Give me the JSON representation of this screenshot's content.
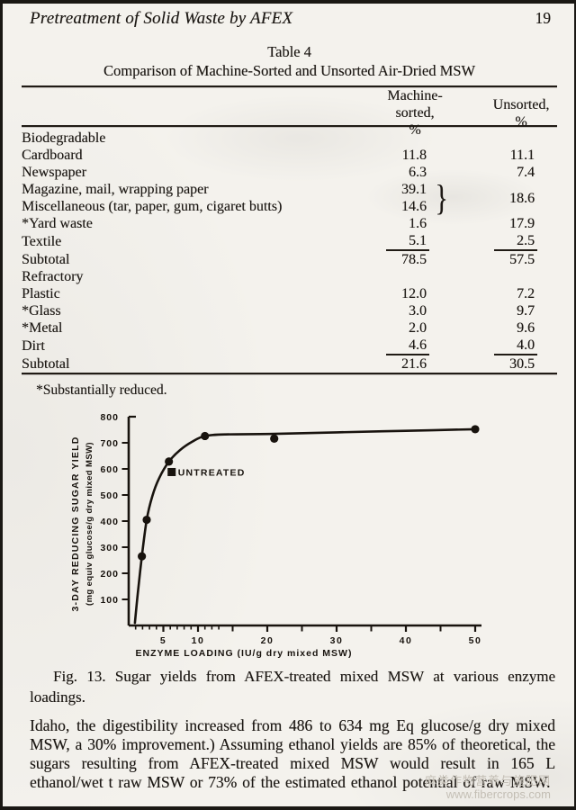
{
  "page": {
    "header_title": "Pretreatment of Solid Waste by AFEX",
    "page_number": "19"
  },
  "table": {
    "title_line1": "Table 4",
    "title_line2": "Comparison of Machine-Sorted and Unsorted Air-Dried MSW",
    "col1_header": "Machine-sorted,",
    "col1_unit": "%",
    "col2_header": "Unsorted,",
    "col2_unit": "%",
    "group_brace": "}",
    "sections": [
      {
        "name": "Biodegradable",
        "rows": [
          {
            "label": "Cardboard",
            "machine": "11.8",
            "unsorted": "11.1"
          },
          {
            "label": "Newspaper",
            "machine": "6.3",
            "unsorted": "7.4"
          },
          {
            "label": "Magazine, mail, wrapping paper",
            "machine": "39.1",
            "unsorted": "18.6",
            "group": "start"
          },
          {
            "label": "Miscellaneous (tar, paper, gum, cigaret butts)",
            "machine": "14.6",
            "group": "end"
          },
          {
            "label": "*Yard waste",
            "machine": "1.6",
            "unsorted": "17.9"
          },
          {
            "label": "Textile",
            "machine": "5.1",
            "unsorted": "2.5",
            "rule_below": true
          },
          {
            "label": "Subtotal",
            "machine": "78.5",
            "unsorted": "57.5",
            "is_subtotal": true
          }
        ]
      },
      {
        "name": "Refractory",
        "rows": [
          {
            "label": "Plastic",
            "machine": "12.0",
            "unsorted": "7.2"
          },
          {
            "label": "*Glass",
            "machine": "3.0",
            "unsorted": "9.7"
          },
          {
            "label": "*Metal",
            "machine": "2.0",
            "unsorted": "9.6"
          },
          {
            "label": "Dirt",
            "machine": "4.6",
            "unsorted": "4.0",
            "rule_below": true
          },
          {
            "label": "Subtotal",
            "machine": "21.6",
            "unsorted": "30.5",
            "is_subtotal": true
          }
        ]
      }
    ],
    "footnote": "*Substantially reduced."
  },
  "chart_data": {
    "type": "line",
    "title": "Sugar yields from AFEX-treated mixed MSW at various enzyme loadings",
    "xlabel": "ENZYME LOADING (IU/g dry mixed MSW)",
    "ylabel": "3-DAY REDUCING SUGAR YIELD (mg equiv glucose/g dry mixed MSW)",
    "ylabel_line1": "3-DAY REDUCING SUGAR YIELD",
    "ylabel_line2": "(mg equiv glucose/g dry mixed MSW)",
    "xlim": [
      0,
      52
    ],
    "ylim": [
      0,
      800
    ],
    "y_ticks": [
      100,
      200,
      300,
      400,
      500,
      600,
      700,
      800
    ],
    "x_labeled_ticks": [
      5,
      10,
      20,
      30,
      40,
      50
    ],
    "x_medium_ticks": [
      15,
      25,
      35,
      45
    ],
    "x_minor_ticks": [
      1,
      2,
      3,
      4,
      6,
      7,
      8,
      9,
      11,
      12,
      13
    ],
    "grid": false,
    "legend_position": "none",
    "series": [
      {
        "name": "AFEX-treated mixed MSW",
        "points": [
          [
            1.9,
            265
          ],
          [
            2.6,
            405
          ],
          [
            5.8,
            628
          ],
          [
            11,
            726
          ],
          [
            21,
            716
          ],
          [
            50,
            752
          ]
        ]
      }
    ],
    "curve": [
      [
        0.9,
        10
      ],
      [
        1.3,
        120
      ],
      [
        1.9,
        265
      ],
      [
        2.6,
        405
      ],
      [
        3.4,
        495
      ],
      [
        4.4,
        565
      ],
      [
        5.8,
        628
      ],
      [
        7.4,
        672
      ],
      [
        9.2,
        705
      ],
      [
        11,
        726
      ],
      [
        14,
        732
      ],
      [
        21,
        734
      ],
      [
        30,
        740
      ],
      [
        40,
        746
      ],
      [
        50,
        752
      ]
    ],
    "untreated_point": {
      "x": 6.2,
      "y": 588,
      "label": "UNTREATED"
    }
  },
  "figure": {
    "caption": "Fig. 13.  Sugar yields from AFEX-treated mixed MSW at various enzyme loadings."
  },
  "paragraph": "Idaho, the digestibility increased from 486 to 634 mg Eq glucose/g dry mixed MSW, a 30% improvement.) Assuming ethanol yields are 85% of theoretical, the sugars resulting from AFEX-treated mixed MSW would result in 165 L ethanol/wet t raw MSW or 73% of the estimated ethanol potential of raw MSW.",
  "watermark": {
    "line1": "麻类作物营养与施肥网",
    "line2": "www.fibercrops.com"
  }
}
